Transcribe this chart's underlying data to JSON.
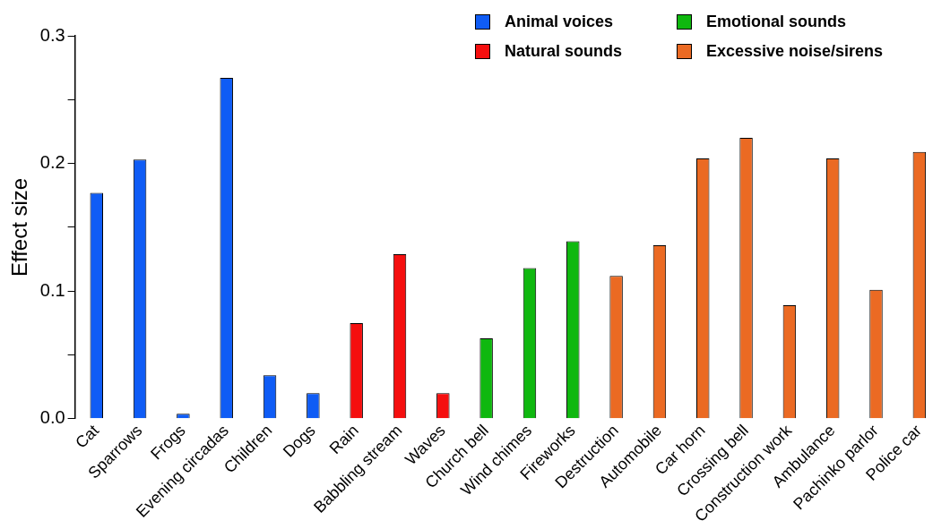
{
  "chart_data": {
    "type": "bar",
    "ylabel": "Effect size",
    "categories": [
      "Cat",
      "Sparrows",
      "Frogs",
      "Evening circadas",
      "Children",
      "Dogs",
      "Rain",
      "Babbling stream",
      "Waves",
      "Church bell",
      "Wind chimes",
      "Fireworks",
      "Destruction",
      "Automobile",
      "Car horn",
      "Crossing bell",
      "Construction work",
      "Ambulance",
      "Pachinko parlor",
      "Police car"
    ],
    "series": [
      {
        "name": "Animal voices",
        "color": "#0f5cf5",
        "values": [
          0.177,
          0.203,
          0.004,
          0.267,
          0.034,
          0.02,
          null,
          null,
          null,
          null,
          null,
          null,
          null,
          null,
          null,
          null,
          null,
          null,
          null,
          null
        ]
      },
      {
        "name": "Natural sounds",
        "color": "#f50f0f",
        "values": [
          null,
          null,
          null,
          null,
          null,
          null,
          0.075,
          0.129,
          0.02,
          null,
          null,
          null,
          null,
          null,
          null,
          null,
          null,
          null,
          null,
          null
        ]
      },
      {
        "name": "Emotional sounds",
        "color": "#0fb80f",
        "values": [
          null,
          null,
          null,
          null,
          null,
          null,
          null,
          null,
          null,
          0.063,
          0.118,
          0.139,
          null,
          null,
          null,
          null,
          null,
          null,
          null,
          null
        ]
      },
      {
        "name": "Excessive noise/sirens",
        "color": "#eb6a23",
        "values": [
          null,
          null,
          null,
          null,
          null,
          null,
          null,
          null,
          null,
          null,
          null,
          null,
          0.112,
          0.136,
          0.204,
          0.22,
          0.089,
          0.204,
          0.101,
          0.209
        ]
      }
    ],
    "ylim": [
      0,
      0.3
    ],
    "yticks": [
      {
        "value": 0,
        "label": "0.0"
      },
      {
        "value": 0.05,
        "label": null
      },
      0.1,
      {
        "value": 0.15,
        "label": null
      },
      0.2,
      {
        "value": 0.25,
        "label": null
      },
      0.3
    ],
    "grid": false,
    "legend": "top right"
  }
}
